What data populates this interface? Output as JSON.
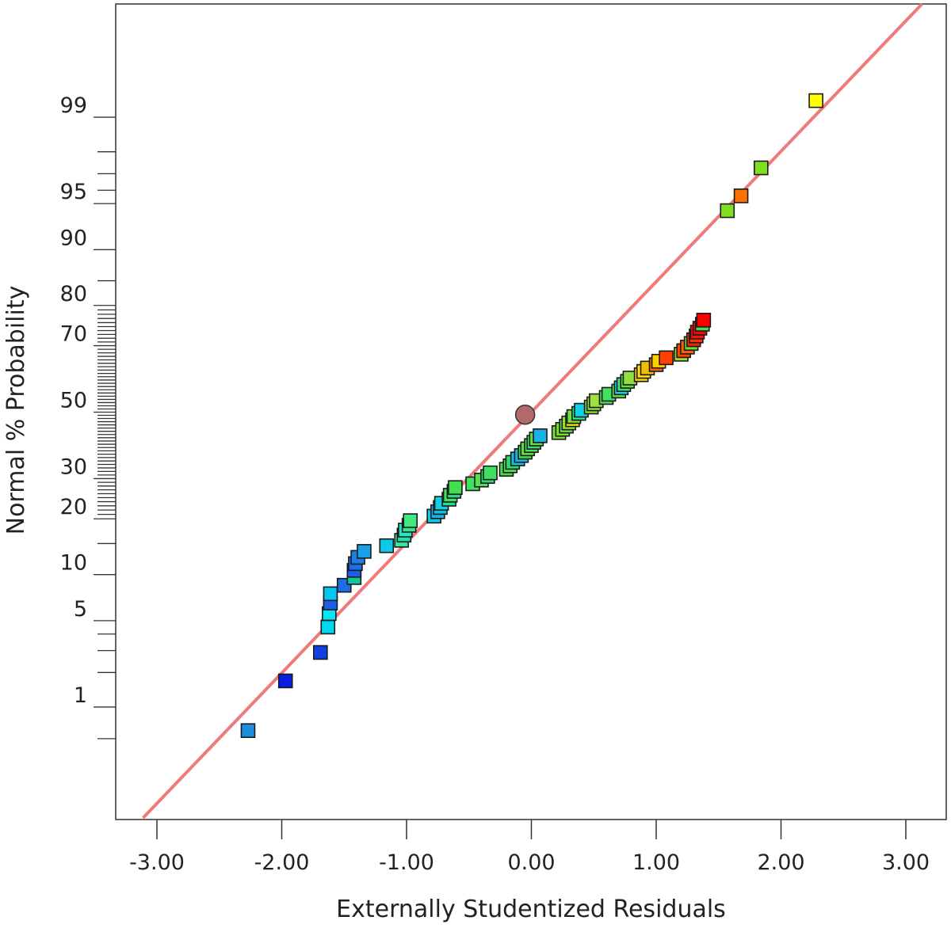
{
  "chart_data": {
    "type": "scatter",
    "title": "",
    "xlabel": "Externally Studentized Residuals",
    "ylabel": "Normal % Probability",
    "xlim": [
      -3.32,
      3.32
    ],
    "x_ticks": [
      -3,
      -2,
      -1,
      0,
      1,
      2,
      3
    ],
    "x_tick_labels": [
      "-3.00",
      "-2.00",
      "-1.00",
      "0.00",
      "1.00",
      "2.00",
      "3.00"
    ],
    "y_scale": "normal-probability",
    "y_tick_labels": [
      {
        "p": 1,
        "label": "1"
      },
      {
        "p": 5,
        "label": "5"
      },
      {
        "p": 10,
        "label": "10"
      },
      {
        "p": 20,
        "label": "20"
      },
      {
        "p": 30,
        "label": "30"
      },
      {
        "p": 50,
        "label": "50"
      },
      {
        "p": 70,
        "label": "70"
      },
      {
        "p": 80,
        "label": "80"
      },
      {
        "p": 90,
        "label": "90"
      },
      {
        "p": 95,
        "label": "95"
      },
      {
        "p": 99,
        "label": "99"
      }
    ],
    "grid": false,
    "legend": "none",
    "reference_line": {
      "color": "#f07a7a"
    },
    "highlight_point": {
      "x": -0.05,
      "p": 49.2,
      "color": "#b06a6a"
    },
    "points": [
      {
        "x": -2.27,
        "p": 0.6,
        "color": "#1a8ee0"
      },
      {
        "x": -1.97,
        "p": 1.7,
        "color": "#0a20e0"
      },
      {
        "x": -1.69,
        "p": 2.9,
        "color": "#1040e0"
      },
      {
        "x": -1.63,
        "p": 4.5,
        "color": "#00d8f0"
      },
      {
        "x": -1.62,
        "p": 5.6,
        "color": "#00e8f0"
      },
      {
        "x": -1.61,
        "p": 6.6,
        "color": "#1a60e8"
      },
      {
        "x": -1.61,
        "p": 7.6,
        "color": "#00c8f0"
      },
      {
        "x": -1.5,
        "p": 8.6,
        "color": "#1a6ee8"
      },
      {
        "x": -1.42,
        "p": 9.6,
        "color": "#10c8a0"
      },
      {
        "x": -1.42,
        "p": 10.6,
        "color": "#1a60e8"
      },
      {
        "x": -1.41,
        "p": 11.6,
        "color": "#1a70e8"
      },
      {
        "x": -1.39,
        "p": 12.6,
        "color": "#1a80e8"
      },
      {
        "x": -1.34,
        "p": 13.6,
        "color": "#1aa0e8"
      },
      {
        "x": -1.16,
        "p": 14.6,
        "color": "#10c8e8"
      },
      {
        "x": -1.04,
        "p": 15.6,
        "color": "#30e8a0"
      },
      {
        "x": -1.02,
        "p": 16.6,
        "color": "#20e0b0"
      },
      {
        "x": -1.01,
        "p": 17.6,
        "color": "#20e8c0"
      },
      {
        "x": -0.98,
        "p": 18.6,
        "color": "#30e890"
      },
      {
        "x": -0.97,
        "p": 19.6,
        "color": "#40e880"
      },
      {
        "x": -0.78,
        "p": 20.6,
        "color": "#10c8e8"
      },
      {
        "x": -0.75,
        "p": 21.6,
        "color": "#1ab0e8"
      },
      {
        "x": -0.73,
        "p": 22.6,
        "color": "#10c0e0"
      },
      {
        "x": -0.72,
        "p": 23.6,
        "color": "#10d0e0"
      },
      {
        "x": -0.66,
        "p": 24.6,
        "color": "#20e090"
      },
      {
        "x": -0.65,
        "p": 25.6,
        "color": "#40e060"
      },
      {
        "x": -0.62,
        "p": 26.6,
        "color": "#30d880"
      },
      {
        "x": -0.61,
        "p": 27.6,
        "color": "#40e050"
      },
      {
        "x": -0.47,
        "p": 28.6,
        "color": "#40e060"
      },
      {
        "x": -0.4,
        "p": 29.6,
        "color": "#50e050"
      },
      {
        "x": -0.35,
        "p": 30.6,
        "color": "#30d880"
      },
      {
        "x": -0.33,
        "p": 31.6,
        "color": "#40e060"
      },
      {
        "x": -0.2,
        "p": 32.6,
        "color": "#40e040"
      },
      {
        "x": -0.17,
        "p": 33.6,
        "color": "#50e050"
      },
      {
        "x": -0.15,
        "p": 34.6,
        "color": "#30d870"
      },
      {
        "x": -0.11,
        "p": 35.6,
        "color": "#10c0e0"
      },
      {
        "x": -0.08,
        "p": 36.6,
        "color": "#1ab0e8"
      },
      {
        "x": -0.05,
        "p": 37.6,
        "color": "#40e040"
      },
      {
        "x": -0.03,
        "p": 38.6,
        "color": "#60e040"
      },
      {
        "x": 0.0,
        "p": 39.6,
        "color": "#50e050"
      },
      {
        "x": 0.02,
        "p": 40.6,
        "color": "#40d880"
      },
      {
        "x": 0.04,
        "p": 41.6,
        "color": "#60e030"
      },
      {
        "x": 0.07,
        "p": 42.6,
        "color": "#1ab0e8"
      },
      {
        "x": 0.22,
        "p": 43.6,
        "color": "#70e040"
      },
      {
        "x": 0.25,
        "p": 44.6,
        "color": "#80e020"
      },
      {
        "x": 0.28,
        "p": 45.6,
        "color": "#60e050"
      },
      {
        "x": 0.3,
        "p": 46.6,
        "color": "#90e030"
      },
      {
        "x": 0.33,
        "p": 47.6,
        "color": "#e8e000"
      },
      {
        "x": 0.34,
        "p": 48.6,
        "color": "#70e040"
      },
      {
        "x": 0.38,
        "p": 49.6,
        "color": "#30e880"
      },
      {
        "x": 0.4,
        "p": 50.6,
        "color": "#10d0e8"
      },
      {
        "x": 0.48,
        "p": 51.6,
        "color": "#80e030"
      },
      {
        "x": 0.5,
        "p": 52.6,
        "color": "#90e040"
      },
      {
        "x": 0.52,
        "p": 53.6,
        "color": "#a0e040"
      },
      {
        "x": 0.6,
        "p": 54.6,
        "color": "#50e050"
      },
      {
        "x": 0.62,
        "p": 55.6,
        "color": "#40e060"
      },
      {
        "x": 0.7,
        "p": 56.6,
        "color": "#60e040"
      },
      {
        "x": 0.72,
        "p": 57.6,
        "color": "#10d0e8"
      },
      {
        "x": 0.74,
        "p": 58.6,
        "color": "#40e070"
      },
      {
        "x": 0.77,
        "p": 59.6,
        "color": "#60e040"
      },
      {
        "x": 0.79,
        "p": 60.6,
        "color": "#90e040"
      },
      {
        "x": 0.88,
        "p": 61.6,
        "color": "#ffd000"
      },
      {
        "x": 0.9,
        "p": 62.6,
        "color": "#ffe000"
      },
      {
        "x": 0.93,
        "p": 63.6,
        "color": "#f0c000"
      },
      {
        "x": 1.0,
        "p": 64.6,
        "color": "#ff6000"
      },
      {
        "x": 1.02,
        "p": 65.6,
        "color": "#ffd000"
      },
      {
        "x": 1.08,
        "p": 66.6,
        "color": "#ff4000"
      },
      {
        "x": 1.2,
        "p": 67.6,
        "color": "#a0e020"
      },
      {
        "x": 1.22,
        "p": 68.6,
        "color": "#ff4000"
      },
      {
        "x": 1.25,
        "p": 69.6,
        "color": "#ff6000"
      },
      {
        "x": 1.28,
        "p": 70.6,
        "color": "#60e040"
      },
      {
        "x": 1.3,
        "p": 71.6,
        "color": "#ff2000"
      },
      {
        "x": 1.32,
        "p": 72.6,
        "color": "#ff3000"
      },
      {
        "x": 1.33,
        "p": 73.6,
        "color": "#ff1000"
      },
      {
        "x": 1.35,
        "p": 74.6,
        "color": "#ff0000"
      },
      {
        "x": 1.37,
        "p": 75.6,
        "color": "#40e050"
      },
      {
        "x": 1.38,
        "p": 76.6,
        "color": "#ff0000"
      },
      {
        "x": 1.57,
        "p": 94.4,
        "color": "#80e020"
      },
      {
        "x": 1.68,
        "p": 95.6,
        "color": "#ff7000"
      },
      {
        "x": 1.84,
        "p": 97.3,
        "color": "#80e020"
      },
      {
        "x": 2.28,
        "p": 99.3,
        "color": "#ffff00"
      }
    ]
  }
}
